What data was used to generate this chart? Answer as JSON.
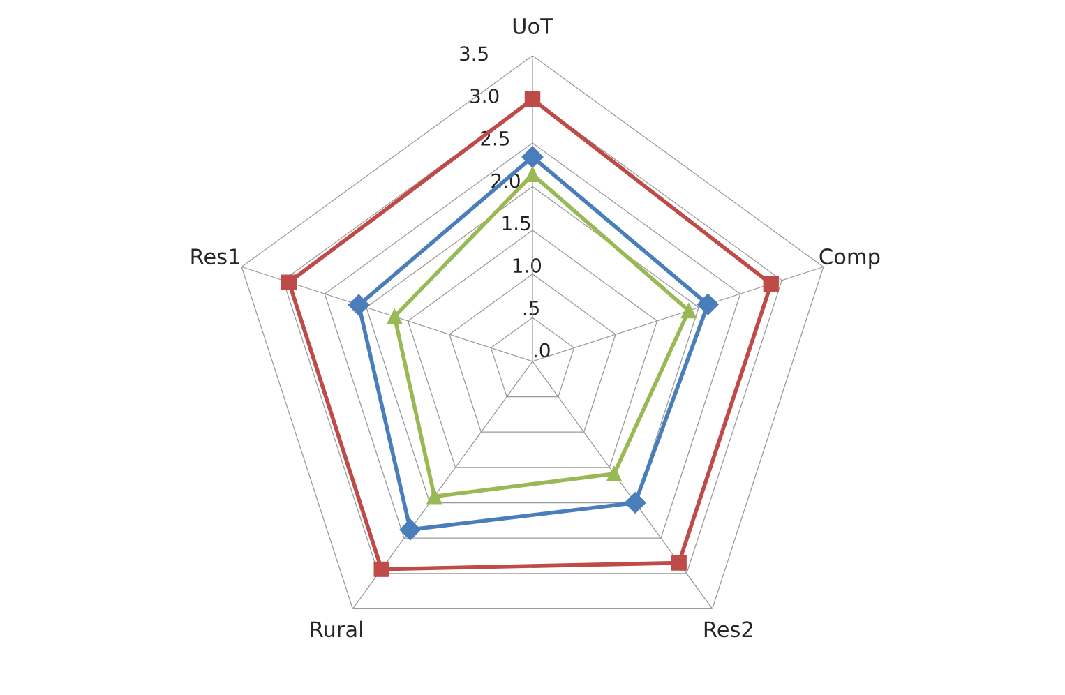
{
  "chart_data": {
    "type": "radar",
    "categories": [
      "UoT",
      "Comp",
      "Res2",
      "Rural",
      "Res1"
    ],
    "series": [
      {
        "color": "#4a7ebb",
        "marker": "diamond",
        "values": [
          2.34,
          2.11,
          2.0,
          2.38,
          2.09
        ]
      },
      {
        "color": "#be4b48",
        "marker": "square",
        "values": [
          3.0,
          2.87,
          2.85,
          2.94,
          2.93
        ]
      },
      {
        "color": "#98b954",
        "marker": "triangle",
        "values": [
          2.14,
          1.88,
          1.59,
          1.91,
          1.66
        ]
      }
    ],
    "ylim": [
      0,
      3.5
    ],
    "yticks": [
      {
        "value": 0,
        "label": ".0"
      },
      {
        "value": 0.5,
        "label": ".5"
      },
      {
        "value": 1.0,
        "label": "1.0"
      },
      {
        "value": 1.5,
        "label": "1.5"
      },
      {
        "value": 2.0,
        "label": "2.0"
      },
      {
        "value": 2.5,
        "label": "2.5"
      },
      {
        "value": 3.0,
        "label": "3.0"
      },
      {
        "value": 3.5,
        "label": "3.5"
      }
    ],
    "grid": true,
    "legend": false
  }
}
